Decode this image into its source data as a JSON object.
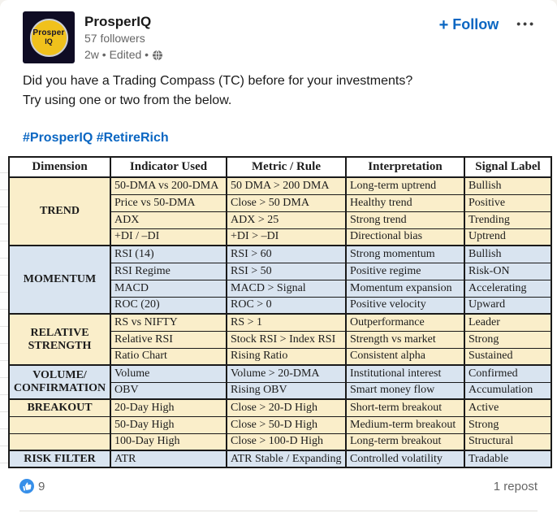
{
  "post": {
    "author": "ProsperIQ",
    "followers": "57 followers",
    "meta": "2w • Edited •",
    "visibility_icon": "globe-icon",
    "follow_plus": "+",
    "follow_label": "Follow",
    "more_icon": "•••",
    "body_line1": "Did you have a Trading Compass (TC) before for your investments?",
    "body_line2": "Try using one or two from the below.",
    "hashtags": "#ProsperIQ #RetireRich",
    "avatar_logo_line1": "Prosper",
    "avatar_logo_line2": "IQ",
    "reactions_count": "9",
    "reposts_label": "1 repost"
  },
  "table": {
    "headers": [
      "Dimension",
      "Indicator Used",
      "Metric / Rule",
      "Interpretation",
      "Signal Label"
    ],
    "sections": [
      {
        "dimension": "TREND",
        "theme": "cream",
        "merged": true,
        "rows": [
          [
            "50-DMA vs 200-DMA",
            "50 DMA > 200 DMA",
            "Long-term uptrend",
            "Bullish"
          ],
          [
            "Price vs 50-DMA",
            "Close > 50 DMA",
            "Healthy trend",
            "Positive"
          ],
          [
            "ADX",
            "ADX > 25",
            "Strong trend",
            "Trending"
          ],
          [
            "+DI / –DI",
            "+DI > –DI",
            "Directional bias",
            "Uptrend"
          ]
        ]
      },
      {
        "dimension": "MOMENTUM",
        "theme": "blue",
        "merged": true,
        "rows": [
          [
            "RSI (14)",
            "RSI > 60",
            "Strong momentum",
            "Bullish"
          ],
          [
            "RSI Regime",
            "RSI > 50",
            "Positive regime",
            "Risk-ON"
          ],
          [
            "MACD",
            "MACD > Signal",
            "Momentum expansion",
            "Accelerating"
          ],
          [
            "ROC (20)",
            "ROC > 0",
            "Positive velocity",
            "Upward"
          ]
        ]
      },
      {
        "dimension": "RELATIVE STRENGTH",
        "theme": "cream",
        "merged": true,
        "rows": [
          [
            "RS vs NIFTY",
            "RS > 1",
            "Outperformance",
            "Leader"
          ],
          [
            "Relative RSI",
            "Stock RSI > Index RSI",
            "Strength vs market",
            "Strong"
          ],
          [
            "Ratio Chart",
            "Rising Ratio",
            "Consistent alpha",
            "Sustained"
          ]
        ]
      },
      {
        "dimension": "VOLUME/ CONFIRMATION",
        "theme": "blue",
        "merged": true,
        "rows": [
          [
            "Volume",
            "Volume > 20-DMA",
            "Institutional interest",
            "Confirmed"
          ],
          [
            "OBV",
            "Rising OBV",
            "Smart money flow",
            "Accumulation"
          ]
        ]
      },
      {
        "dimension": "BREAKOUT",
        "theme": "cream",
        "merged": false,
        "rows": [
          [
            "20-Day High",
            "Close > 20-D High",
            "Short-term breakout",
            "Active"
          ],
          [
            "50-Day High",
            "Close > 50-D High",
            "Medium-term breakout",
            "Strong"
          ],
          [
            "100-Day High",
            "Close > 100-D High",
            "Long-term breakout",
            "Structural"
          ]
        ]
      },
      {
        "dimension": "RISK FILTER",
        "theme": "blue",
        "merged": true,
        "rows": [
          [
            "ATR",
            "ATR Stable / Expanding",
            "Controlled volatility",
            "Tradable"
          ]
        ]
      }
    ]
  },
  "colors": {
    "accent": "#0a66c2",
    "like_blue": "#378fe9",
    "table_cream": "#faeeca",
    "table_blue": "#d9e4f0",
    "table_border": "#1a1a1a",
    "text_primary": "#191919",
    "text_secondary": "#666666",
    "avatar_bg": "#0f0c24",
    "logo_yellow": "#f0c11c"
  }
}
